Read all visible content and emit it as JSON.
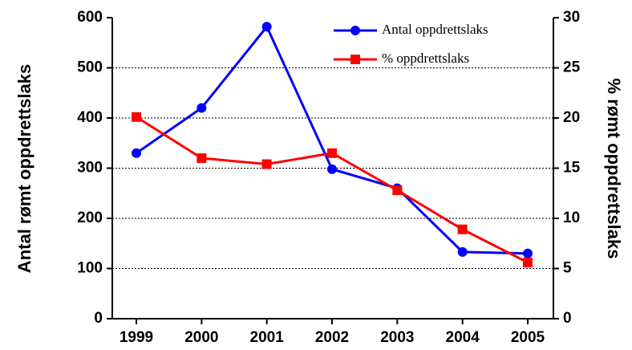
{
  "chart_data": {
    "type": "line",
    "categories": [
      "1999",
      "2000",
      "2001",
      "2002",
      "2003",
      "2004",
      "2005"
    ],
    "ylabel": "Antal rømt oppdrettslaks",
    "y2label": "% rømt oppdrettslaks",
    "series": [
      {
        "name": "Antal oppdrettslaks",
        "color": "#0000ff",
        "marker": "circle",
        "values": [
          330,
          420,
          582,
          298,
          260,
          133,
          130
        ]
      },
      {
        "name": "% oppdrettslaks",
        "color": "#ff0000",
        "marker": "square",
        "axis": "y2",
        "values": [
          20.1,
          16,
          15.4,
          16.5,
          12.8,
          8.9,
          5.6
        ]
      }
    ],
    "ylim": [
      0,
      600
    ],
    "yticks": [
      0,
      100,
      200,
      300,
      400,
      500,
      600
    ],
    "y2lim": [
      0,
      30
    ],
    "y2ticks": [
      0,
      5,
      10,
      15,
      20,
      25,
      30
    ],
    "grid": true,
    "legend": "upper right"
  }
}
